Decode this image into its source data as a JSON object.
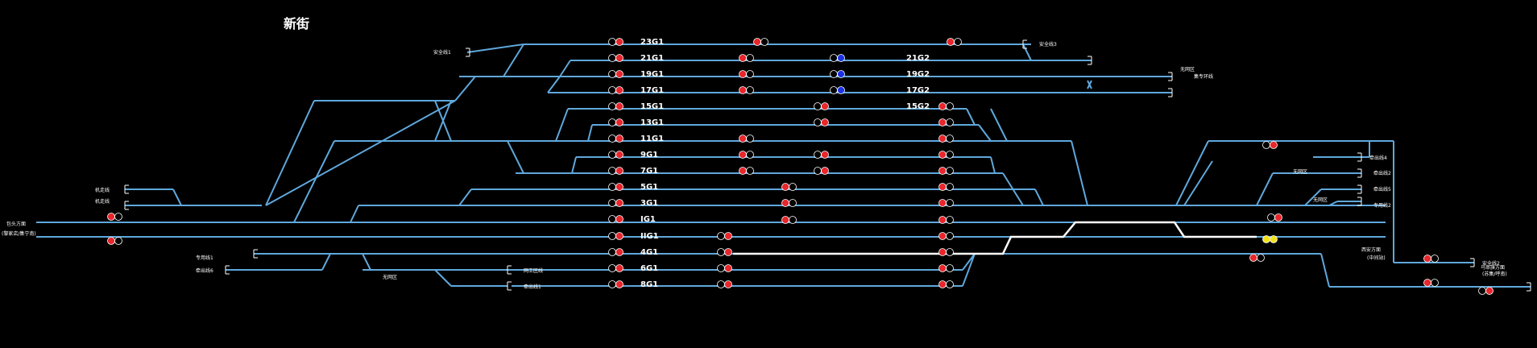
{
  "station_name": "新街",
  "colors": {
    "background": "#000000",
    "track": "#5fa8dc",
    "route": "#ffffff",
    "signal_red": "#e8262b",
    "signal_off": "#000000",
    "signal_blue": "#1a33e6",
    "signal_yellow": "#f5e21a"
  },
  "track_labels": {
    "t23G1": "23G1",
    "t21G1": "21G1",
    "t19G1": "19G1",
    "t17G1": "17G1",
    "t15G1": "15G1",
    "t13G1": "13G1",
    "t11G1": "11G1",
    "t9G1": "9G1",
    "t7G1": "7G1",
    "t5G1": "5G1",
    "t3G1": "3G1",
    "tIG1": "IG1",
    "tIIG1": "IIG1",
    "t4G1": "4G1",
    "t6G1": "6G1",
    "t8G1": "8G1",
    "t21G2": "21G2",
    "t19G2": "19G2",
    "t17G2": "17G2",
    "t15G2": "15G2"
  },
  "siding_labels": {
    "safety1": "安全线1",
    "safety3": "安全线3",
    "safety2": "安全线2",
    "pull_lines": "牵出线1",
    "pull_lines2": "牵出线2",
    "pull_lines3": "牵出线3",
    "pull_lines4": "牵出线4",
    "pull_lines5": "牵出线5",
    "pull_lines6": "牵出线6",
    "freight": "货物线",
    "freight2": "专用线1",
    "freight3": "专用线2",
    "stop_area": "无网区",
    "stop_area2": "无网区",
    "stop_area3": "无网区",
    "stop_area4": "无网区",
    "loco": "机走线",
    "loco2": "机走线",
    "loco3": "集专环线",
    "repair": "网工区线",
    "left_dir": "包头方面",
    "left_dir_sub": "(黎家店/集宁南)",
    "right_dir": "西安方面",
    "right_dir_sub": "(中间站)",
    "right_dir2": "乌审旗方面",
    "right_dir2_sub": "(苏集/呼南)"
  },
  "signal_states": {
    "summary": "red signals at track heads; two blue shunting signals; two yellow at right throat"
  }
}
